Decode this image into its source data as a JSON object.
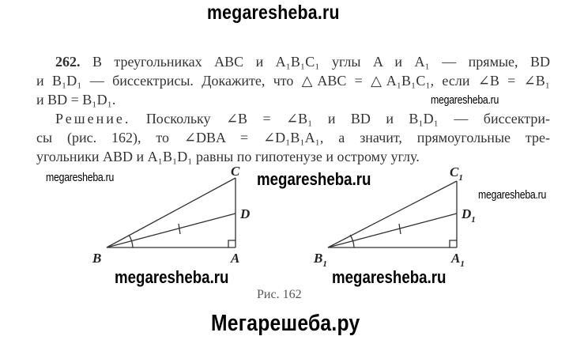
{
  "watermarks": {
    "top": "megaresheba.ru",
    "small_1": "megaresheba.ru",
    "small_2": "megaresheba.ru",
    "small_3": "megaresheba.ru",
    "mid_1": "megaresheba.ru",
    "mid_2": "megaresheba.ru",
    "mid_3": "megaresheba.ru",
    "bottom": "Мегарешеба.ру"
  },
  "problem": {
    "number": "262.",
    "lines": [
      "В треугольниках ABC и A₁B₁C₁ углы A и A₁ — прямые, BD",
      "и B₁D₁ — биссектрисы. Докажите, что △ABC = △A₁B₁C₁, если ∠B = ∠B₁",
      "и BD = B₁D₁."
    ]
  },
  "solution": {
    "heading": "Решение.",
    "lines": [
      "Поскольку ∠B = ∠B₁ и BD и B₁D₁ — биссектри-",
      "сы (рис. 162), то ∠DBA = ∠D₁B₁A₁, а значит, прямоугольные тре-",
      "угольники ABD и A₁B₁D₁ равны по гипотенузе и острому углу."
    ]
  },
  "figure": {
    "left": {
      "B": "B",
      "A": "A",
      "C": "C",
      "D": "D"
    },
    "right": {
      "B": "B",
      "A": "A",
      "C": "C",
      "D": "D",
      "sub": "1"
    },
    "caption": "Рис. 162"
  }
}
